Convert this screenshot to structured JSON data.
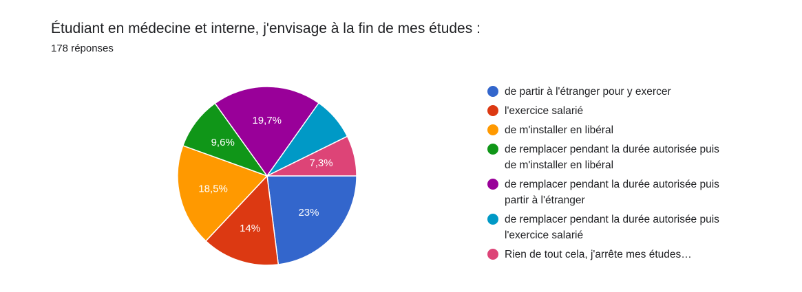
{
  "header": {
    "title": "Étudiant en médecine et interne, j'envisage à la fin de mes études :",
    "response_count": "178 réponses"
  },
  "chart_data": {
    "type": "pie",
    "title": "Étudiant en médecine et interne, j'envisage à la fin de mes études :",
    "total_responses": 178,
    "legend_position": "right",
    "start": "3 o'clock, clockwise",
    "slices": [
      {
        "label": "de partir à l'étranger pour y exercer",
        "value": 23.0,
        "display": "23%",
        "color": "#3366cc"
      },
      {
        "label": "l'exercice salarié",
        "value": 14.0,
        "display": "14%",
        "color": "#dc3912"
      },
      {
        "label": "de m'installer en libéral",
        "value": 18.5,
        "display": "18,5%",
        "color": "#ff9900"
      },
      {
        "label": "de remplacer pendant la durée autorisée puis de m'installer en libéral",
        "value": 9.6,
        "display": "9,6%",
        "color": "#109618"
      },
      {
        "label": "de remplacer pendant la durée autorisée puis partir à l'étranger",
        "value": 19.7,
        "display": "19,7%",
        "color": "#990099"
      },
      {
        "label": "de remplacer pendant la durée autorisée puis l'exercice salarié",
        "value": 7.9,
        "display": "",
        "color": "#0099c6"
      },
      {
        "label": "Rien de tout cela, j'arrête mes études…",
        "value": 7.3,
        "display": "7,3%",
        "color": "#dd4477"
      }
    ]
  }
}
